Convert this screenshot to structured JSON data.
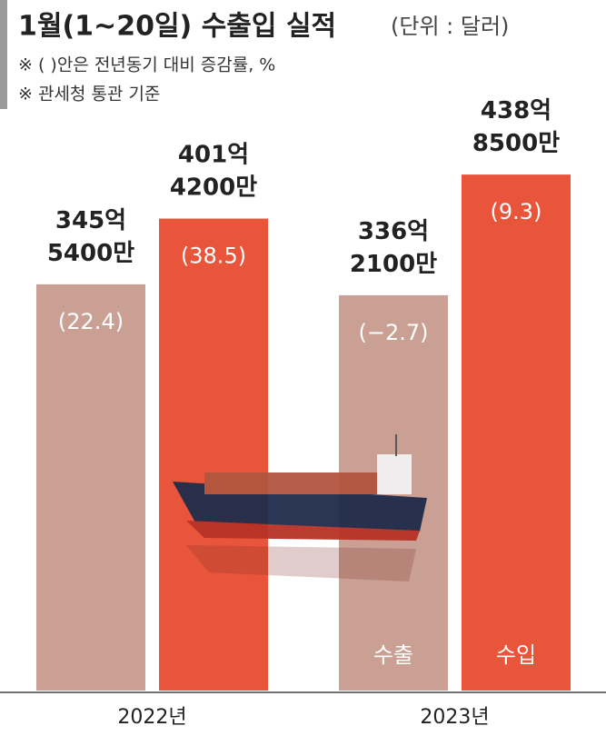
{
  "chart_data": {
    "type": "bar",
    "title": "1월(1~20일) 수출입 실적",
    "unit": "(단위 : 달러)",
    "notes": [
      "※ (  )안은 전년동기 대비 증감률, %",
      "※ 관세청 통관 기준"
    ],
    "categories": [
      "2022년",
      "2023년"
    ],
    "series": [
      {
        "name": "수출",
        "color": "#c9a093",
        "values": [
          345.54,
          336.21
        ],
        "value_labels": [
          "345억\n5400만",
          "336억\n2100만"
        ],
        "changes": [
          22.4,
          -2.7
        ],
        "change_labels": [
          "(22.4)",
          "(−2.7)"
        ]
      },
      {
        "name": "수입",
        "color": "#e8553a",
        "values": [
          401.42,
          438.85
        ],
        "value_labels": [
          "401억\n4200만",
          "438억\n8500만"
        ],
        "changes": [
          38.5,
          9.3
        ],
        "change_labels": [
          "(38.5)",
          "(9.3)"
        ]
      }
    ]
  }
}
